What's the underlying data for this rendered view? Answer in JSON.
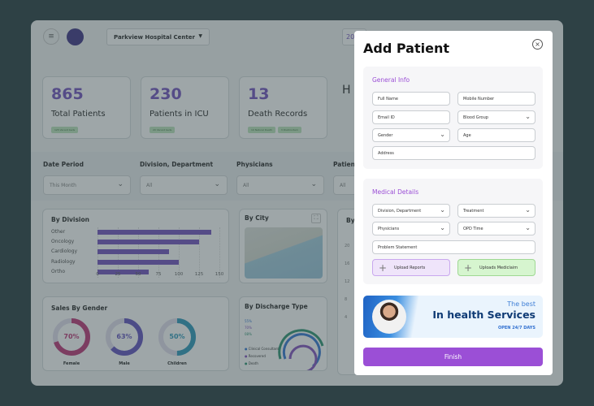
{
  "header": {
    "hospital": "Parkview Hospital Center",
    "date_partial": "20"
  },
  "stats": [
    {
      "value": "865",
      "label": "Total Patients",
      "badges": [
        "125 Vacant beds"
      ]
    },
    {
      "value": "230",
      "label": "Patients in ICU",
      "badges": [
        "20 Vacant beds"
      ]
    },
    {
      "value": "13",
      "label": "Death Records",
      "badges": [
        "10 Natural Death",
        "3 Postmortem"
      ]
    }
  ],
  "stat_partial": "H",
  "filters": [
    {
      "label": "Date Period",
      "value": "This Month"
    },
    {
      "label": "Division, Department",
      "value": "All"
    },
    {
      "label": "Physicians",
      "value": "All"
    },
    {
      "label": "Patien",
      "value": "All"
    }
  ],
  "by_division": {
    "title": "By Division",
    "chart_data": {
      "type": "bar",
      "orientation": "horizontal",
      "categories": [
        "Other",
        "Oncology",
        "Cardiology",
        "Radiology",
        "Ortho"
      ],
      "values": [
        140,
        125,
        88,
        100,
        63
      ],
      "xlim": [
        0,
        150
      ],
      "ticks": [
        "0",
        "25",
        "50",
        "75",
        "100",
        "125",
        "150"
      ],
      "color": "#7a5bc4"
    }
  },
  "by_city": {
    "title": "By City"
  },
  "by_partial": {
    "title": "By",
    "ticks": [
      "20",
      "16",
      "12",
      "8",
      "4"
    ]
  },
  "gender": {
    "title": "Sales By Gender",
    "items": [
      {
        "pct": "70%",
        "label": "Female",
        "value": 70,
        "color": "#c2417f"
      },
      {
        "pct": "63%",
        "label": "Male",
        "value": 63,
        "color": "#6a5bc4"
      },
      {
        "pct": "50%",
        "label": "Children",
        "value": 50,
        "color": "#3a9fc0"
      }
    ]
  },
  "discharge": {
    "title": "By Discharge Type",
    "pcts": [
      "55%",
      "70%",
      "08%"
    ],
    "legend": [
      {
        "label": "Clinical Consultant",
        "color": "#3f7fd6"
      },
      {
        "label": "Recovered",
        "color": "#8a5bc4"
      },
      {
        "label": "Death",
        "color": "#3a9a7a"
      }
    ]
  },
  "modal": {
    "title": "Add Patient",
    "general": {
      "title": "General Info",
      "fields": [
        "Full Name",
        "Mobile Number",
        "Email ID",
        "Blood Group",
        "Gender",
        "Age",
        "Address"
      ]
    },
    "medical": {
      "title": "Medical Details",
      "fields": [
        "Division, Department",
        "Treatment",
        "Physicians",
        "OPD Time",
        "Problem Statement"
      ],
      "upload_reports": "Upload Reports",
      "upload_mediclaim": "Uploads Mediclaim"
    },
    "banner": {
      "line1": "The best",
      "line2": "In health Services",
      "line3": "OPEN 24/7 DAYS"
    },
    "finish": "Finish",
    "accent": "#9b4fd6"
  }
}
